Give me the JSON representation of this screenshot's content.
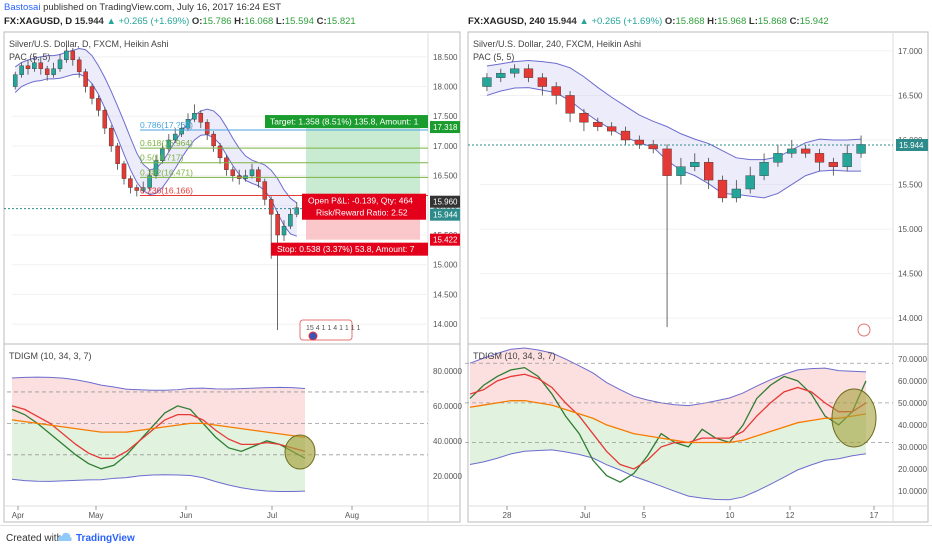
{
  "publisher": {
    "user": "Bastosai",
    "text": " published on TradingView.com, July 16, 2017 16:24 EST"
  },
  "left_header": {
    "ticker": "FX:XAGUSD, D",
    "price": "15.944",
    "change": "▲ +0.265 (+1.69%)",
    "o_lbl": "O:",
    "o": "15.786",
    "h_lbl": "H:",
    "h": "16.068",
    "l_lbl": "L:",
    "l": "15.594",
    "c_lbl": "C:",
    "c": "15.821"
  },
  "right_header": {
    "ticker": "FX:XAGUSD, 240",
    "price": "15.944",
    "change": "▲ +0.265 (+1.69%)",
    "o_lbl": "O:",
    "o": "15.868",
    "h_lbl": "H:",
    "h": "15.968",
    "l_lbl": "L:",
    "l": "15.868",
    "c_lbl": "C:",
    "c": "15.942"
  },
  "footer": {
    "created_with": "Created with",
    "brand": "TradingView"
  },
  "colors": {
    "up": "#26a69a",
    "down": "#e53935",
    "band_fill": "#c9c9f0",
    "band_line": "#6c6ccf",
    "target": "#1b9c2e",
    "stop": "#e3001b",
    "hline": "#2e8b8b"
  },
  "chart_data": [
    {
      "type": "candlestick",
      "panel": "left-price",
      "title": "Silver/U.S. Dollar, D, FXCM, Heikin Ashi",
      "indicator": "PAC (5, 5)",
      "yticks": [
        "18.500",
        "18.000",
        "17.500",
        "17.000",
        "16.500",
        "16.000",
        "15.500",
        "15.000",
        "14.500",
        "14.000"
      ],
      "ylim": [
        13.8,
        18.75
      ],
      "xticks": [
        "Apr",
        "May",
        "Jun",
        "Jul",
        "Aug"
      ],
      "price_labels": [
        "17.318",
        "15.960",
        "15.944",
        "15.422"
      ],
      "fib_levels": [
        {
          "label": "0.786(17.?69)",
          "value": 17.269
        },
        {
          "label": "0.618(16.964)",
          "value": 16.964
        },
        {
          "label": "0.5(16.717)",
          "value": 16.717
        },
        {
          "label": "0.382(16.471)",
          "value": 16.471
        },
        {
          "label": "0.236(16.166)",
          "value": 16.166
        }
      ],
      "position": {
        "target": "Target: 1.358 (8.51%) 135.8, Amount: 1",
        "open": "Open P&L: -0.139, Qty: 464",
        "ratio": "Risk/Reward Ratio: 2.52",
        "stop": "Stop: 0.538 (3.37%) 53.8, Amount: 7",
        "entry": 15.96,
        "target_price": 17.318,
        "stop_price": 15.422
      },
      "bottom_label": "15 4 1 1 4 1 1 1 1",
      "candles": [
        [
          18.0,
          18.2,
          18.25,
          17.95
        ],
        [
          18.2,
          18.35,
          18.4,
          18.15
        ],
        [
          18.35,
          18.3,
          18.45,
          18.2
        ],
        [
          18.3,
          18.4,
          18.5,
          18.25
        ],
        [
          18.4,
          18.3,
          18.5,
          18.2
        ],
        [
          18.3,
          18.2,
          18.35,
          18.1
        ],
        [
          18.2,
          18.3,
          18.4,
          18.15
        ],
        [
          18.3,
          18.45,
          18.55,
          18.25
        ],
        [
          18.45,
          18.6,
          18.7,
          18.4
        ],
        [
          18.6,
          18.45,
          18.65,
          18.35
        ],
        [
          18.45,
          18.25,
          18.5,
          18.15
        ],
        [
          18.25,
          18.0,
          18.3,
          17.9
        ],
        [
          18.0,
          17.8,
          18.05,
          17.7
        ],
        [
          17.8,
          17.6,
          17.85,
          17.5
        ],
        [
          17.6,
          17.3,
          17.65,
          17.2
        ],
        [
          17.3,
          17.0,
          17.35,
          16.9
        ],
        [
          17.0,
          16.7,
          17.05,
          16.6
        ],
        [
          16.7,
          16.45,
          16.75,
          16.35
        ],
        [
          16.45,
          16.3,
          16.5,
          16.2
        ],
        [
          16.3,
          16.25,
          16.35,
          16.15
        ],
        [
          16.25,
          16.3,
          16.4,
          16.2
        ],
        [
          16.3,
          16.5,
          16.6,
          16.25
        ],
        [
          16.5,
          16.75,
          16.85,
          16.45
        ],
        [
          16.75,
          16.95,
          17.05,
          16.7
        ],
        [
          16.95,
          17.1,
          17.2,
          16.9
        ],
        [
          17.1,
          17.2,
          17.3,
          17.05
        ],
        [
          17.2,
          17.3,
          17.4,
          17.15
        ],
        [
          17.3,
          17.45,
          17.55,
          17.25
        ],
        [
          17.45,
          17.55,
          17.7,
          17.4
        ],
        [
          17.55,
          17.4,
          17.6,
          17.3
        ],
        [
          17.4,
          17.2,
          17.45,
          17.1
        ],
        [
          17.2,
          17.0,
          17.25,
          16.9
        ],
        [
          17.0,
          16.8,
          17.05,
          16.7
        ],
        [
          16.8,
          16.6,
          16.85,
          16.5
        ],
        [
          16.6,
          16.5,
          16.65,
          16.4
        ],
        [
          16.5,
          16.45,
          16.6,
          16.35
        ],
        [
          16.45,
          16.5,
          16.6,
          16.4
        ],
        [
          16.5,
          16.6,
          16.7,
          16.45
        ],
        [
          16.6,
          16.4,
          16.65,
          16.3
        ],
        [
          16.4,
          16.1,
          16.45,
          16.0
        ],
        [
          16.1,
          15.85,
          16.15,
          15.1
        ],
        [
          15.85,
          15.5,
          15.9,
          13.9
        ],
        [
          15.5,
          15.65,
          15.75,
          15.4
        ],
        [
          15.65,
          15.85,
          15.95,
          15.6
        ],
        [
          15.85,
          15.96,
          16.05,
          15.8
        ]
      ]
    },
    {
      "type": "line",
      "panel": "left-indicator",
      "title": "TDIGM (10, 34, 3, 7)",
      "yticks": [
        "80.0000",
        "60.0000",
        "40.0000",
        "20.0000"
      ],
      "ylim": [
        5,
        92
      ],
      "series": [
        {
          "name": "",
          "color": "#2e7d32",
          "values": [
            58,
            55,
            50,
            44,
            38,
            32,
            27,
            24,
            26,
            32,
            40,
            48,
            56,
            60,
            58,
            50,
            42,
            36,
            34,
            37,
            40,
            38,
            34,
            30
          ]
        },
        {
          "name": "",
          "color": "#e53935",
          "values": [
            60,
            58,
            54,
            50,
            44,
            38,
            33,
            30,
            30,
            34,
            40,
            46,
            52,
            55,
            55,
            52,
            46,
            41,
            38,
            38,
            39,
            38,
            36,
            34
          ]
        },
        {
          "name": "",
          "color": "#f57c00",
          "values": [
            52,
            51,
            50,
            49,
            48,
            47,
            46,
            45,
            45,
            45,
            46,
            47,
            48,
            49,
            50,
            50,
            49,
            48,
            47,
            46,
            45,
            44,
            43,
            42
          ]
        }
      ]
    },
    {
      "type": "candlestick",
      "panel": "right-price",
      "title": "Silver/U.S. Dollar, 240, FXCM, Heikin Ashi",
      "indicator": "PAC (5, 5)",
      "yticks": [
        "17.000",
        "16.500",
        "16.000",
        "15.500",
        "15.000",
        "14.500",
        "14.000"
      ],
      "ylim": [
        13.8,
        17.1
      ],
      "xticks": [
        "28",
        "Jul",
        "5",
        "10",
        "12",
        "17"
      ],
      "price_labels": [
        "15.944"
      ],
      "candles": [
        [
          16.6,
          16.7,
          16.75,
          16.55
        ],
        [
          16.7,
          16.75,
          16.8,
          16.65
        ],
        [
          16.75,
          16.8,
          16.85,
          16.7
        ],
        [
          16.8,
          16.7,
          16.85,
          16.65
        ],
        [
          16.7,
          16.6,
          16.75,
          16.5
        ],
        [
          16.6,
          16.5,
          16.65,
          16.4
        ],
        [
          16.5,
          16.3,
          16.55,
          16.2
        ],
        [
          16.3,
          16.2,
          16.35,
          16.1
        ],
        [
          16.2,
          16.15,
          16.25,
          16.1
        ],
        [
          16.15,
          16.1,
          16.2,
          16.05
        ],
        [
          16.1,
          16.0,
          16.15,
          15.95
        ],
        [
          16.0,
          15.95,
          16.05,
          15.9
        ],
        [
          15.95,
          15.9,
          16.0,
          15.85
        ],
        [
          15.9,
          15.6,
          15.95,
          13.9
        ],
        [
          15.6,
          15.7,
          15.8,
          15.5
        ],
        [
          15.7,
          15.75,
          15.85,
          15.65
        ],
        [
          15.75,
          15.55,
          15.8,
          15.45
        ],
        [
          15.55,
          15.35,
          15.6,
          15.3
        ],
        [
          15.35,
          15.45,
          15.55,
          15.3
        ],
        [
          15.45,
          15.6,
          15.7,
          15.4
        ],
        [
          15.6,
          15.75,
          15.85,
          15.55
        ],
        [
          15.75,
          15.85,
          15.95,
          15.7
        ],
        [
          15.85,
          15.9,
          16.0,
          15.8
        ],
        [
          15.9,
          15.85,
          15.95,
          15.8
        ],
        [
          15.85,
          15.75,
          15.9,
          15.65
        ],
        [
          15.75,
          15.7,
          15.8,
          15.6
        ],
        [
          15.7,
          15.85,
          15.95,
          15.65
        ],
        [
          15.85,
          15.95,
          16.05,
          15.8
        ]
      ]
    },
    {
      "type": "line",
      "panel": "right-indicator",
      "title": "TDIGM (10, 34, 3, 7)",
      "yticks": [
        "70.0000",
        "60.0000",
        "50.0000",
        "40.0000",
        "30.0000",
        "20.0000",
        "10.0000"
      ],
      "ylim": [
        5,
        74
      ],
      "series": [
        {
          "name": "",
          "color": "#2e7d32",
          "values": [
            52,
            58,
            62,
            65,
            66,
            62,
            54,
            44,
            36,
            24,
            17,
            14,
            18,
            26,
            36,
            32,
            30,
            38,
            34,
            32,
            40,
            52,
            58,
            62,
            60,
            54,
            44,
            40,
            46,
            60
          ]
        },
        {
          "name": "",
          "color": "#e53935",
          "values": [
            54,
            56,
            60,
            62,
            63,
            61,
            57,
            50,
            44,
            36,
            28,
            22,
            20,
            24,
            30,
            32,
            32,
            34,
            34,
            34,
            37,
            44,
            50,
            55,
            57,
            55,
            50,
            46,
            46,
            50
          ]
        },
        {
          "name": "",
          "color": "#f57c00",
          "values": [
            48,
            49,
            50,
            51,
            51,
            50,
            49,
            47,
            45,
            43,
            40,
            38,
            36,
            35,
            34,
            33,
            32,
            32,
            32,
            32,
            33,
            35,
            37,
            39,
            41,
            42,
            43,
            43,
            44,
            45
          ]
        }
      ]
    }
  ]
}
